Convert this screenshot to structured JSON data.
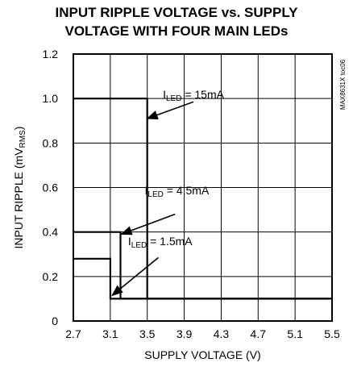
{
  "chart_data": {
    "type": "line",
    "title_line1": "INPUT RIPPLE VOLTAGE vs. SUPPLY",
    "title_line2": "VOLTAGE WITH FOUR MAIN LEDs",
    "xlabel": "SUPPLY VOLTAGE (V)",
    "ylabel": {
      "main": "INPUT RIPPLE (mV",
      "sub": "RMS",
      "tail": ")"
    },
    "side_label": "MAX8631X toc06",
    "xlim": [
      2.7,
      5.5
    ],
    "ylim": [
      0,
      1.2
    ],
    "xticks": [
      2.7,
      3.1,
      3.5,
      3.9,
      4.3,
      4.7,
      5.1,
      5.5
    ],
    "xtick_labels": [
      "2.7",
      "3.1",
      "3.5",
      "3.9",
      "4.3",
      "4.7",
      "5.1",
      "5.5"
    ],
    "yticks": [
      0,
      0.2,
      0.4,
      0.6,
      0.8,
      1.0,
      1.2
    ],
    "ytick_labels": [
      "0",
      "0.2",
      "0.4",
      "0.6",
      "0.8",
      "1.0",
      "1.2"
    ],
    "grid": true,
    "series": [
      {
        "name": "ILED = 15mA",
        "label_main": "I",
        "label_sub": "LED",
        "label_tail": " = 15mA",
        "x": [
          2.7,
          3.5,
          3.5,
          5.5
        ],
        "y": [
          1.0,
          1.0,
          0.1,
          0.1
        ]
      },
      {
        "name": "ILED = 4.5mA",
        "label_main": "I",
        "label_sub": "LED",
        "label_tail": " = 4.5mA",
        "x": [
          2.7,
          3.21,
          3.21,
          5.5
        ],
        "y": [
          0.4,
          0.4,
          0.1,
          0.1
        ]
      },
      {
        "name": "ILED = 1.5mA",
        "label_main": "I",
        "label_sub": "LED",
        "label_tail": " = 1.5mA",
        "x": [
          2.7,
          3.1,
          3.1,
          5.5
        ],
        "y": [
          0.28,
          0.28,
          0.1,
          0.1
        ]
      }
    ],
    "annotations": [
      {
        "series": 0,
        "text_x": 4.0,
        "text_y": 1.0,
        "arrow_from": [
          4.0,
          0.985
        ],
        "arrow_to": [
          3.5,
          0.91
        ]
      },
      {
        "series": 1,
        "text_x": 3.82,
        "text_y": 0.57,
        "arrow_from": [
          3.8,
          0.48
        ],
        "arrow_to": [
          3.22,
          0.39
        ]
      },
      {
        "series": 2,
        "text_x": 3.64,
        "text_y": 0.34,
        "arrow_from": [
          3.62,
          0.285
        ],
        "arrow_to": [
          3.12,
          0.115
        ]
      }
    ]
  }
}
